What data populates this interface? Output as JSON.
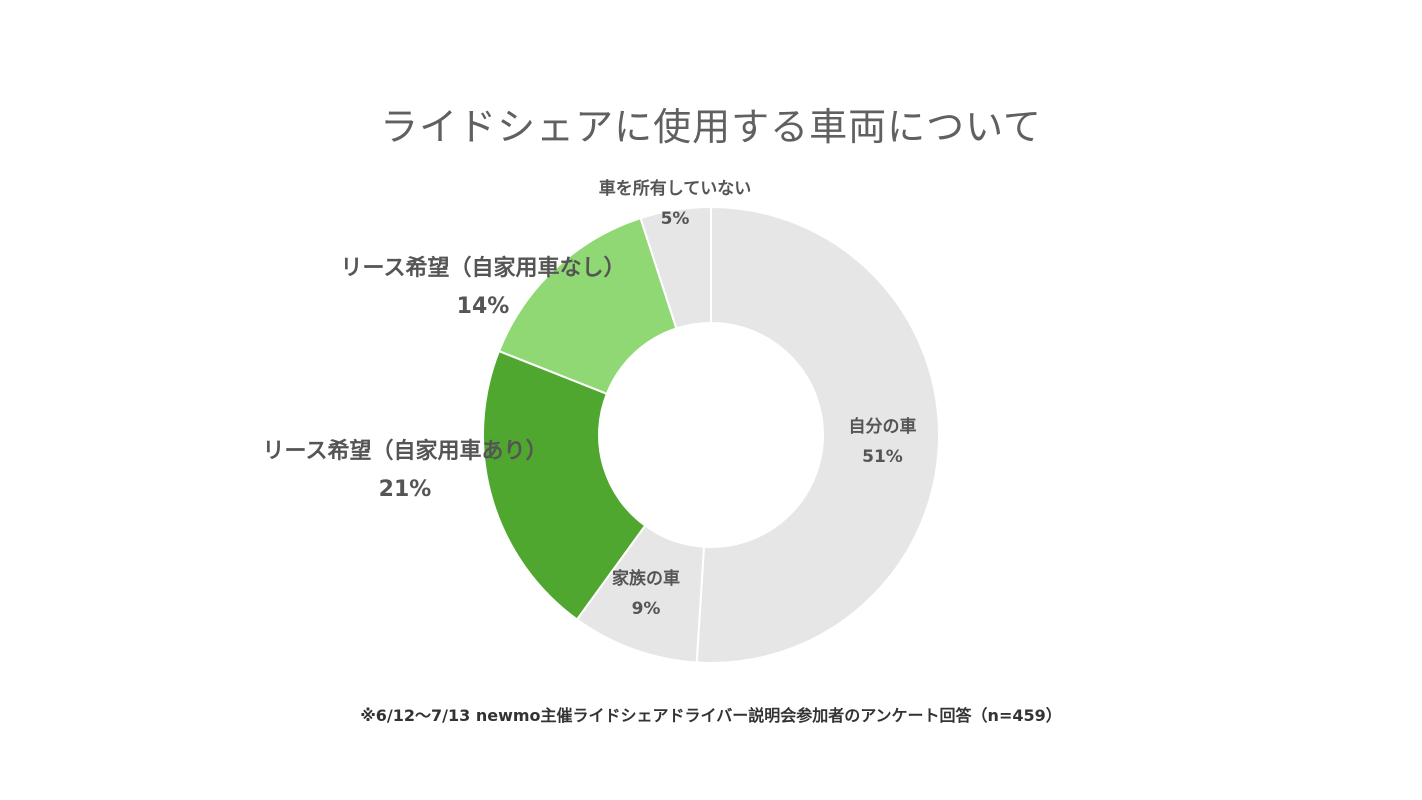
{
  "chart_data": {
    "type": "pie",
    "donut": true,
    "title": "ライドシェアに使用する車両について",
    "slices": [
      {
        "label": "自分の車",
        "value": 51,
        "value_label": "51%",
        "color": "#e6e6e6"
      },
      {
        "label": "家族の車",
        "value": 9,
        "value_label": "9%",
        "color": "#e6e6e6"
      },
      {
        "label": "リース希望（自家用車あり）",
        "value": 21,
        "value_label": "21%",
        "color": "#4fa72f"
      },
      {
        "label": "リース希望（自家用車なし）",
        "value": 14,
        "value_label": "14%",
        "color": "#8fd874"
      },
      {
        "label": "車を所有していない",
        "value": 5,
        "value_label": "5%",
        "color": "#e6e6e6"
      }
    ],
    "footnote": "※6/12〜7/13 newmo主催ライドシェアドライバー説明会参加者のアンケート回答（n=459）"
  }
}
